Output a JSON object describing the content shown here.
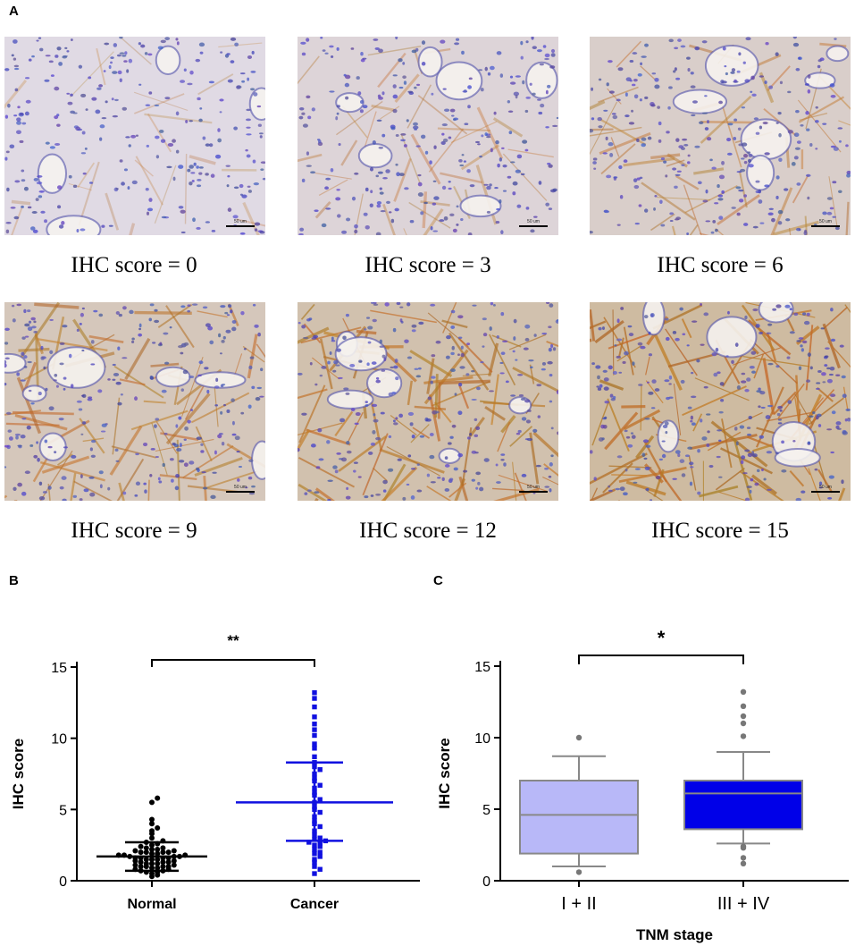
{
  "panels": {
    "a": "A",
    "b": "B",
    "c": "C"
  },
  "micrographs": [
    {
      "caption": "IHC score = 0",
      "scale_label": "50 um",
      "stain": 0.05
    },
    {
      "caption": "IHC score = 3",
      "scale_label": "50 um",
      "stain": 0.22
    },
    {
      "caption": "IHC score = 6",
      "scale_label": "50 um",
      "stain": 0.4
    },
    {
      "caption": "IHC score = 9",
      "scale_label": "50 um",
      "stain": 0.6
    },
    {
      "caption": "IHC score = 12",
      "scale_label": "50 um",
      "stain": 0.78
    },
    {
      "caption": "IHC score = 15",
      "scale_label": "50 um",
      "stain": 0.95
    }
  ],
  "chart_data": [
    {
      "type": "scatter",
      "categories": [
        "Normal",
        "Cancer"
      ],
      "ylabel": "IHC score",
      "xlabel": "",
      "ylim": [
        0,
        15
      ],
      "yticks": [
        0,
        5,
        10,
        15
      ],
      "significance": "**",
      "colors": {
        "Normal": "#000000",
        "Cancer": "#1010e0"
      },
      "summary": {
        "Normal": {
          "mean": 1.7,
          "sd_low": 0.7,
          "sd_high": 2.7
        },
        "Cancer": {
          "mean": 5.5,
          "sd_low": 2.8,
          "sd_high": 8.3
        }
      },
      "points": {
        "Normal": [
          0.3,
          0.4,
          0.5,
          0.6,
          0.6,
          0.7,
          0.7,
          0.8,
          0.8,
          0.9,
          0.9,
          1.0,
          1.0,
          1.0,
          1.0,
          1.1,
          1.1,
          1.2,
          1.2,
          1.2,
          1.3,
          1.3,
          1.3,
          1.4,
          1.4,
          1.5,
          1.5,
          1.5,
          1.6,
          1.6,
          1.6,
          1.6,
          1.7,
          1.7,
          1.7,
          1.8,
          1.8,
          1.8,
          1.9,
          1.9,
          2.0,
          2.0,
          2.0,
          2.0,
          2.1,
          2.1,
          2.2,
          2.2,
          2.3,
          2.3,
          2.4,
          2.5,
          2.6,
          2.7,
          2.8,
          3.0,
          3.3,
          3.5,
          3.7,
          4.0,
          4.3,
          5.5,
          5.8
        ],
        "Cancer": [
          0.5,
          0.8,
          1.0,
          1.3,
          1.5,
          1.7,
          1.9,
          2.0,
          2.2,
          2.4,
          2.5,
          2.6,
          2.7,
          2.8,
          2.9,
          3.0,
          3.2,
          3.5,
          3.8,
          4.0,
          4.2,
          4.5,
          4.8,
          5.0,
          5.2,
          5.5,
          5.7,
          6.0,
          6.2,
          6.5,
          6.7,
          7.0,
          7.2,
          7.5,
          7.8,
          8.0,
          8.3,
          8.7,
          9.3,
          9.6,
          10.2,
          10.6,
          11.0,
          11.5,
          12.2,
          12.8,
          13.2
        ]
      }
    },
    {
      "type": "box",
      "categories": [
        "I + II",
        "III + IV"
      ],
      "xlabel": "TNM stage",
      "ylabel": "IHC score",
      "ylim": [
        0,
        15
      ],
      "yticks": [
        0,
        5,
        10,
        15
      ],
      "significance": "*",
      "boxes": [
        {
          "name": "I + II",
          "whisker_low": 1.0,
          "q1": 1.9,
          "median": 4.6,
          "q3": 7.0,
          "whisker_high": 8.7,
          "outliers": [
            0.6,
            10.0
          ],
          "fill": "#b8b8f8"
        },
        {
          "name": "III + IV",
          "whisker_low": 2.6,
          "q1": 3.6,
          "median": 6.1,
          "q3": 7.0,
          "whisker_high": 9.0,
          "outliers": [
            1.2,
            1.6,
            2.3,
            2.4,
            10.1,
            11.0,
            11.5,
            12.2,
            13.2
          ],
          "fill": "#0000e8"
        }
      ]
    }
  ]
}
